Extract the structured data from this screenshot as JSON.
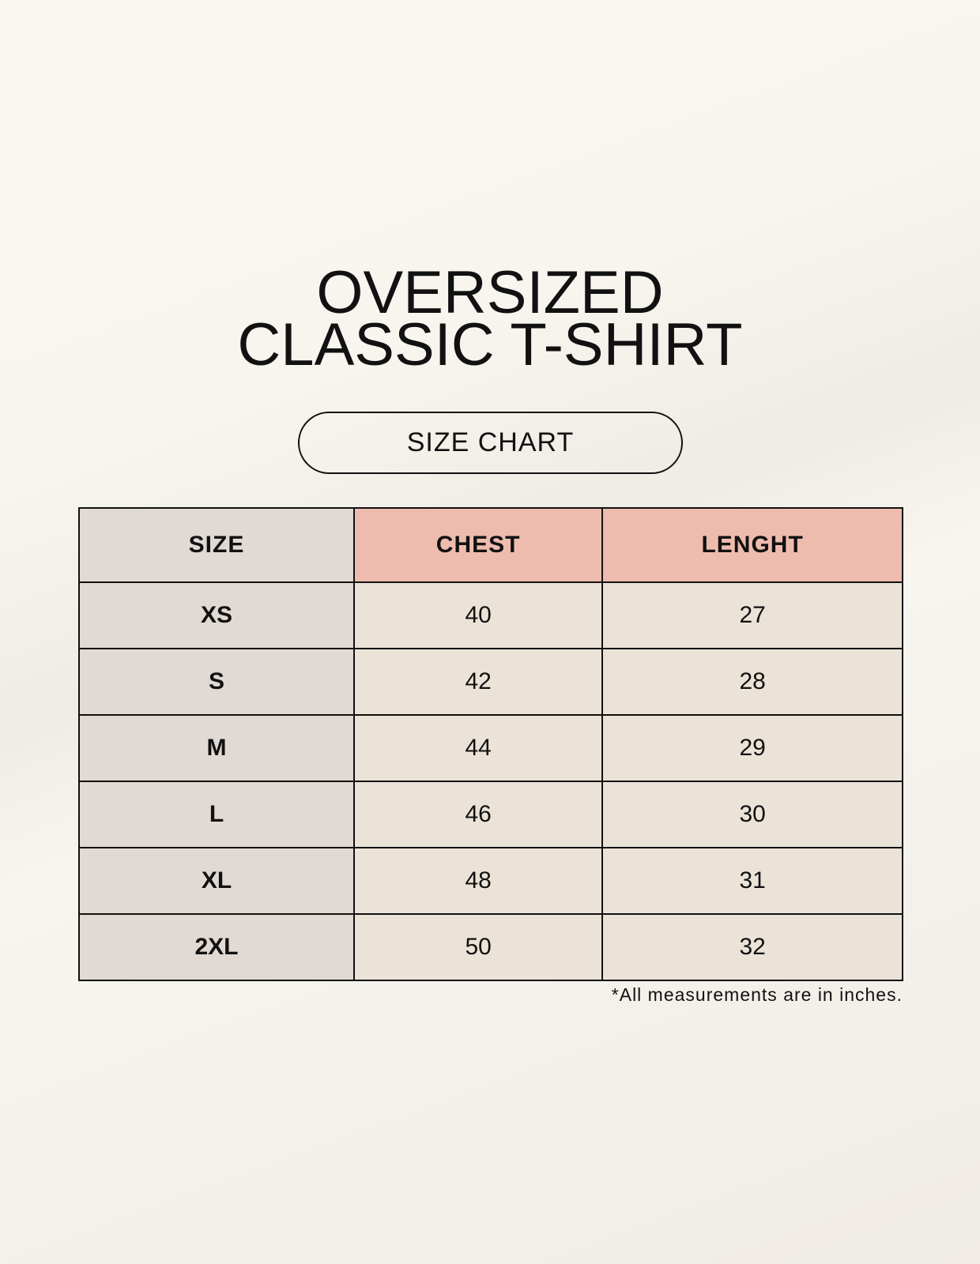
{
  "title": {
    "line1": "OVERSIZED",
    "line2": "CLASSIC T-SHIRT"
  },
  "badge": "SIZE CHART",
  "colors": {
    "size_column": "#e1d9d3",
    "header_highlight": "#eebcaf",
    "cell": "#ebe3d8",
    "background": "#f8f5ef"
  },
  "table": {
    "headers": [
      "SIZE",
      "CHEST",
      "LENGHT"
    ],
    "rows": [
      [
        "XS",
        "40",
        "27"
      ],
      [
        "S",
        "42",
        "28"
      ],
      [
        "M",
        "44",
        "29"
      ],
      [
        "L",
        "46",
        "30"
      ],
      [
        "XL",
        "48",
        "31"
      ],
      [
        "2XL",
        "50",
        "32"
      ]
    ]
  },
  "footnote": "*All measurements are in inches."
}
